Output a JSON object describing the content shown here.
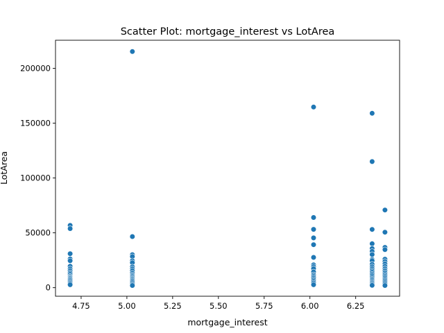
{
  "chart_data": {
    "type": "scatter",
    "title": "Scatter Plot: mortgage_interest vs LotArea",
    "xlabel": "mortgage_interest",
    "ylabel": "LotArea",
    "xlim": [
      4.61,
      6.49
    ],
    "ylim": [
      -7800,
      225600
    ],
    "xticks": [
      4.75,
      5.0,
      5.25,
      5.5,
      5.75,
      6.0,
      6.25
    ],
    "xtick_labels": [
      "4.75",
      "5.00",
      "5.25",
      "5.50",
      "5.75",
      "6.00",
      "6.25"
    ],
    "yticks": [
      0,
      50000,
      100000,
      150000,
      200000
    ],
    "ytick_labels": [
      "0",
      "50000",
      "100000",
      "150000",
      "200000"
    ],
    "grid": false,
    "marker_color": "#1f77b4",
    "points": [
      {
        "x": 4.69,
        "y": 56800
      },
      {
        "x": 4.69,
        "y": 53900
      },
      {
        "x": 4.69,
        "y": 31000
      },
      {
        "x": 4.69,
        "y": 26200
      },
      {
        "x": 4.69,
        "y": 24600
      },
      {
        "x": 4.69,
        "y": 19500
      },
      {
        "x": 4.69,
        "y": 17200
      },
      {
        "x": 4.69,
        "y": 15400
      },
      {
        "x": 4.69,
        "y": 13600
      },
      {
        "x": 4.69,
        "y": 12100
      },
      {
        "x": 4.69,
        "y": 10500
      },
      {
        "x": 4.69,
        "y": 9500
      },
      {
        "x": 4.69,
        "y": 8600
      },
      {
        "x": 4.69,
        "y": 7600
      },
      {
        "x": 4.69,
        "y": 6400
      },
      {
        "x": 4.69,
        "y": 5100
      },
      {
        "x": 4.69,
        "y": 3900
      },
      {
        "x": 4.69,
        "y": 2700
      },
      {
        "x": 5.03,
        "y": 215300
      },
      {
        "x": 5.03,
        "y": 46600
      },
      {
        "x": 5.03,
        "y": 30100
      },
      {
        "x": 5.03,
        "y": 28400
      },
      {
        "x": 5.03,
        "y": 24600
      },
      {
        "x": 5.03,
        "y": 22800
      },
      {
        "x": 5.03,
        "y": 19000
      },
      {
        "x": 5.03,
        "y": 17200
      },
      {
        "x": 5.03,
        "y": 15400
      },
      {
        "x": 5.03,
        "y": 13300
      },
      {
        "x": 5.03,
        "y": 11700
      },
      {
        "x": 5.03,
        "y": 10400
      },
      {
        "x": 5.03,
        "y": 9200
      },
      {
        "x": 5.03,
        "y": 8100
      },
      {
        "x": 5.03,
        "y": 7000
      },
      {
        "x": 5.03,
        "y": 5900
      },
      {
        "x": 5.03,
        "y": 4600
      },
      {
        "x": 5.03,
        "y": 3200
      },
      {
        "x": 5.03,
        "y": 2000
      },
      {
        "x": 6.02,
        "y": 164700
      },
      {
        "x": 6.02,
        "y": 64000
      },
      {
        "x": 6.02,
        "y": 53200
      },
      {
        "x": 6.02,
        "y": 45400
      },
      {
        "x": 6.02,
        "y": 39200
      },
      {
        "x": 6.02,
        "y": 27600
      },
      {
        "x": 6.02,
        "y": 20800
      },
      {
        "x": 6.02,
        "y": 19200
      },
      {
        "x": 6.02,
        "y": 17400
      },
      {
        "x": 6.02,
        "y": 14400
      },
      {
        "x": 6.02,
        "y": 11800
      },
      {
        "x": 6.02,
        "y": 10300
      },
      {
        "x": 6.02,
        "y": 8900
      },
      {
        "x": 6.02,
        "y": 7400
      },
      {
        "x": 6.02,
        "y": 5800
      },
      {
        "x": 6.02,
        "y": 4300
      },
      {
        "x": 6.02,
        "y": 2700
      },
      {
        "x": 6.34,
        "y": 159000
      },
      {
        "x": 6.34,
        "y": 115000
      },
      {
        "x": 6.34,
        "y": 53100
      },
      {
        "x": 6.34,
        "y": 40100
      },
      {
        "x": 6.34,
        "y": 35700
      },
      {
        "x": 6.34,
        "y": 33100
      },
      {
        "x": 6.34,
        "y": 30200
      },
      {
        "x": 6.34,
        "y": 25700
      },
      {
        "x": 6.34,
        "y": 24600
      },
      {
        "x": 6.34,
        "y": 21300
      },
      {
        "x": 6.34,
        "y": 19100
      },
      {
        "x": 6.34,
        "y": 17300
      },
      {
        "x": 6.34,
        "y": 15600
      },
      {
        "x": 6.34,
        "y": 14000
      },
      {
        "x": 6.34,
        "y": 12400
      },
      {
        "x": 6.34,
        "y": 10900
      },
      {
        "x": 6.34,
        "y": 9400
      },
      {
        "x": 6.34,
        "y": 8000
      },
      {
        "x": 6.34,
        "y": 6800
      },
      {
        "x": 6.34,
        "y": 5600
      },
      {
        "x": 6.34,
        "y": 4400
      },
      {
        "x": 6.34,
        "y": 3200
      },
      {
        "x": 6.34,
        "y": 2100
      },
      {
        "x": 6.41,
        "y": 70800
      },
      {
        "x": 6.41,
        "y": 50600
      },
      {
        "x": 6.41,
        "y": 36700
      },
      {
        "x": 6.41,
        "y": 34700
      },
      {
        "x": 6.41,
        "y": 26000
      },
      {
        "x": 6.41,
        "y": 23900
      },
      {
        "x": 6.41,
        "y": 21700
      },
      {
        "x": 6.41,
        "y": 19500
      },
      {
        "x": 6.41,
        "y": 17400
      },
      {
        "x": 6.41,
        "y": 15500
      },
      {
        "x": 6.41,
        "y": 13700
      },
      {
        "x": 6.41,
        "y": 12000
      },
      {
        "x": 6.41,
        "y": 10500
      },
      {
        "x": 6.41,
        "y": 9000
      },
      {
        "x": 6.41,
        "y": 7600
      },
      {
        "x": 6.41,
        "y": 6200
      },
      {
        "x": 6.41,
        "y": 4800
      },
      {
        "x": 6.41,
        "y": 3400
      },
      {
        "x": 6.41,
        "y": 2000
      }
    ]
  }
}
